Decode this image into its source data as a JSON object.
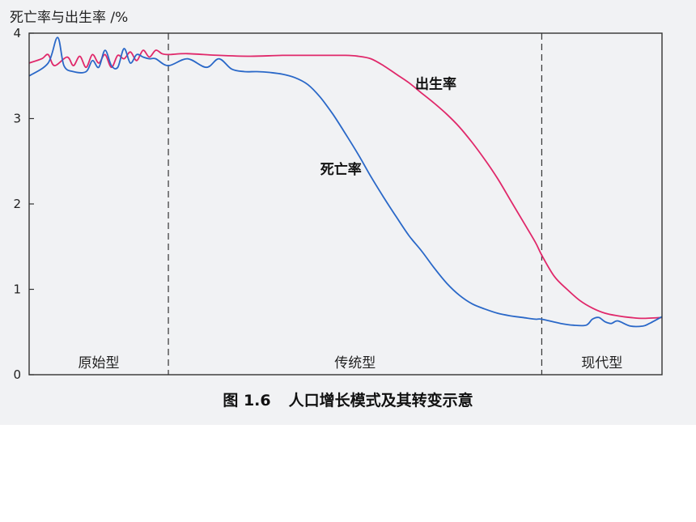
{
  "chart_data": {
    "type": "line",
    "ylabel": "死亡率与出生率 /%",
    "xlabel": "",
    "ylim": [
      0,
      4
    ],
    "yticks": [
      0,
      1,
      2,
      3,
      4
    ],
    "x_range": [
      0,
      100
    ],
    "grid": false,
    "phases": [
      {
        "label": "原始型",
        "start": 0,
        "end": 22
      },
      {
        "label": "传统型",
        "start": 22,
        "end": 81
      },
      {
        "label": "现代型",
        "start": 81,
        "end": 100
      }
    ],
    "phase_dividers": [
      22,
      81
    ],
    "series": [
      {
        "name": "出生率",
        "color": "#e0286a",
        "x": [
          0,
          2,
          3,
          4,
          6,
          7,
          8,
          9,
          10,
          11,
          12,
          13,
          14,
          15,
          16,
          17,
          18,
          19,
          20,
          21,
          22,
          25,
          30,
          35,
          40,
          45,
          50,
          52,
          54,
          56,
          58,
          60,
          62,
          64,
          66,
          68,
          70,
          72,
          74,
          76,
          78,
          80,
          81,
          83,
          85,
          87,
          89,
          91,
          93,
          95,
          97,
          100
        ],
        "values": [
          3.65,
          3.7,
          3.75,
          3.62,
          3.72,
          3.62,
          3.73,
          3.6,
          3.75,
          3.65,
          3.75,
          3.6,
          3.74,
          3.7,
          3.78,
          3.68,
          3.8,
          3.72,
          3.8,
          3.76,
          3.75,
          3.76,
          3.74,
          3.73,
          3.74,
          3.74,
          3.74,
          3.73,
          3.7,
          3.62,
          3.52,
          3.42,
          3.3,
          3.18,
          3.05,
          2.9,
          2.72,
          2.52,
          2.3,
          2.05,
          1.8,
          1.55,
          1.4,
          1.15,
          1.0,
          0.87,
          0.78,
          0.72,
          0.69,
          0.67,
          0.66,
          0.67
        ]
      },
      {
        "name": "死亡率",
        "color": "#2a68c8",
        "x": [
          0,
          3,
          4.5,
          5.5,
          7,
          9,
          10,
          11,
          12,
          13,
          14,
          15,
          16,
          17,
          18,
          19,
          20,
          22,
          25,
          28,
          30,
          32,
          34,
          36,
          38,
          40,
          42,
          44,
          46,
          48,
          50,
          52,
          54,
          56,
          58,
          60,
          62,
          64,
          66,
          68,
          70,
          72,
          74,
          76,
          78,
          80,
          81,
          84,
          86,
          88,
          89,
          90,
          91,
          92,
          93,
          95,
          97,
          98,
          100
        ],
        "values": [
          3.5,
          3.65,
          3.95,
          3.62,
          3.55,
          3.55,
          3.68,
          3.6,
          3.8,
          3.62,
          3.6,
          3.82,
          3.65,
          3.75,
          3.72,
          3.7,
          3.7,
          3.62,
          3.7,
          3.6,
          3.7,
          3.58,
          3.55,
          3.55,
          3.54,
          3.52,
          3.48,
          3.4,
          3.25,
          3.05,
          2.82,
          2.58,
          2.32,
          2.08,
          1.85,
          1.63,
          1.45,
          1.25,
          1.07,
          0.93,
          0.83,
          0.77,
          0.72,
          0.69,
          0.67,
          0.65,
          0.65,
          0.6,
          0.58,
          0.58,
          0.65,
          0.67,
          0.62,
          0.6,
          0.63,
          0.57,
          0.57,
          0.6,
          0.68
        ]
      }
    ],
    "annotations": [
      {
        "text": "出生率",
        "x": 61,
        "y": 3.35,
        "series": "出生率"
      },
      {
        "text": "死亡率",
        "x": 46,
        "y": 2.35,
        "series": "死亡率"
      }
    ]
  },
  "caption": {
    "figure_number": "图 1.6",
    "title": "人口增长模式及其转变示意"
  }
}
